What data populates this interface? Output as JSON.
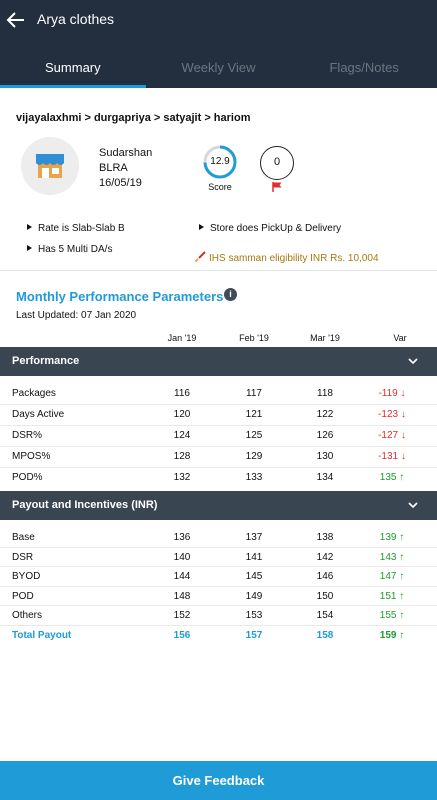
{
  "header": {
    "title": "Arya clothes",
    "tabs": [
      {
        "label": "Summary",
        "active": true
      },
      {
        "label": "Weekly View",
        "active": false
      },
      {
        "label": "Flags/Notes",
        "active": false
      }
    ]
  },
  "store": {
    "breadcrumb": "vijayalaxhmi > durgapriya > satyajit > hariom",
    "owner": "Sudarshan",
    "code": "BLRA",
    "date": "16/05/19",
    "score": "12.9",
    "score_label": "Score",
    "flags": "0",
    "facts": {
      "rate": "Rate is Slab-Slab B",
      "multi_da": "Has 5 Multi DA/s",
      "pickup": "Store does PickUp & Delivery",
      "ihs": "IHS samman eligibility INR Rs. 10,004"
    }
  },
  "parameters": {
    "title": "Monthly Performance Parameters",
    "last_updated": "Last Updated: 07 Jan 2020",
    "columns": [
      "Jan '19",
      "Feb '19",
      "Mar '19",
      "Var"
    ],
    "performance": {
      "label": "Performance",
      "rows": [
        {
          "name": "Packages",
          "v1": "116",
          "v2": "117",
          "v3": "118",
          "var": "-119 ↓",
          "trend": "neg"
        },
        {
          "name": "Days Active",
          "v1": "120",
          "v2": "121",
          "v3": "122",
          "var": "-123 ↓",
          "trend": "neg"
        },
        {
          "name": "DSR%",
          "v1": "124",
          "v2": "125",
          "v3": "126",
          "var": "-127 ↓",
          "trend": "neg"
        },
        {
          "name": "MPOS%",
          "v1": "128",
          "v2": "129",
          "v3": "130",
          "var": "-131 ↓",
          "trend": "neg"
        },
        {
          "name": "POD%",
          "v1": "132",
          "v2": "133",
          "v3": "134",
          "var": "135 ↑",
          "trend": "pos"
        }
      ]
    },
    "payout": {
      "label": "Payout and Incentives (INR)",
      "rows": [
        {
          "name": "Base",
          "v1": "136",
          "v2": "137",
          "v3": "138",
          "var": "139 ↑",
          "trend": "pos"
        },
        {
          "name": "DSR",
          "v1": "140",
          "v2": "141",
          "v3": "142",
          "var": "143 ↑",
          "trend": "pos"
        },
        {
          "name": "BYOD",
          "v1": "144",
          "v2": "145",
          "v3": "146",
          "var": "147 ↑",
          "trend": "pos"
        },
        {
          "name": "POD",
          "v1": "148",
          "v2": "149",
          "v3": "150",
          "var": "151 ↑",
          "trend": "pos"
        },
        {
          "name": "Others",
          "v1": "152",
          "v2": "153",
          "v3": "154",
          "var": "155 ↑",
          "trend": "pos"
        },
        {
          "name": "Total Payout",
          "v1": "156",
          "v2": "157",
          "v3": "158",
          "var": "159 ↑",
          "trend": "pos"
        }
      ]
    }
  },
  "footer": {
    "feedback_label": "Give Feedback"
  },
  "colors": {
    "header": "#232f3e",
    "accent": "#1f9bd7",
    "section": "#3a4552",
    "negative": "#e02d2d",
    "positive": "#1e9b2e",
    "ihs": "#a27b12"
  },
  "icons": [
    "back-arrow-icon",
    "store-icon",
    "flag-icon",
    "info-icon",
    "chevron-down-icon",
    "rocket-icon",
    "bullet-triangle-icon"
  ]
}
